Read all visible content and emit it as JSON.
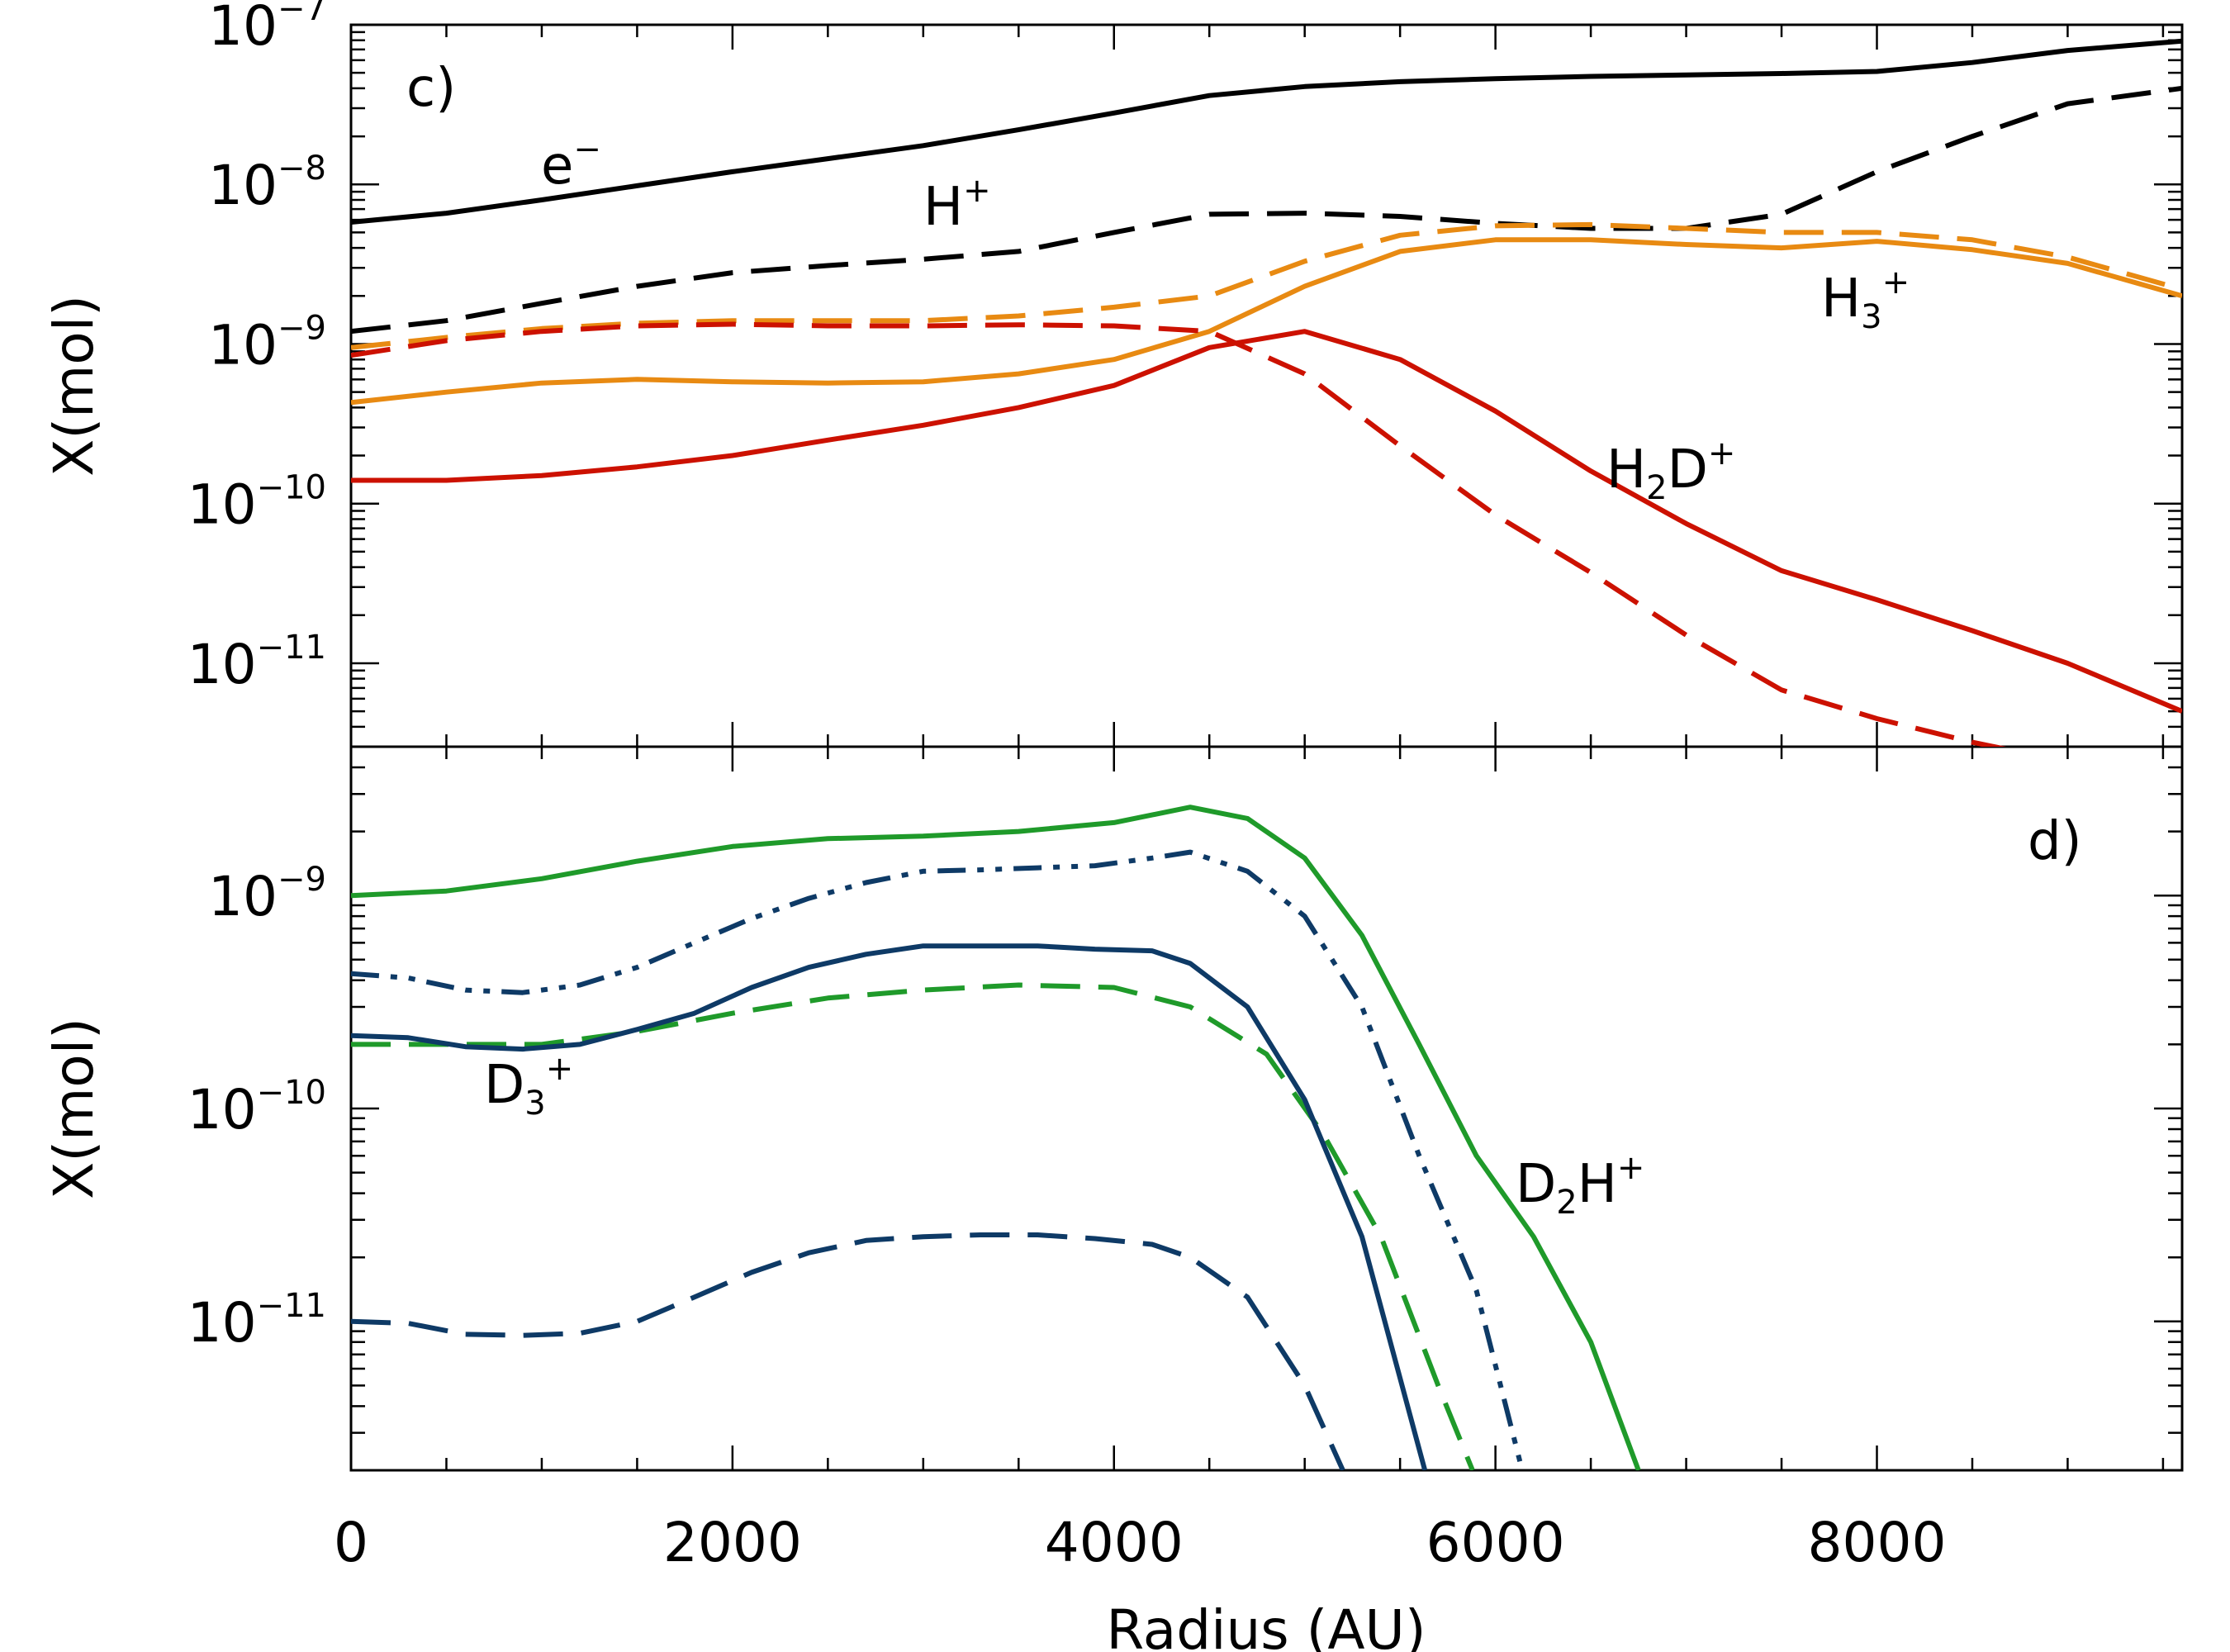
{
  "chart_data": [
    {
      "panel": "c)",
      "type": "line",
      "xlabel": "Radius (AU)",
      "ylabel": "X(mol)",
      "yscale": "log",
      "xlim": [
        0,
        9600
      ],
      "ylim": [
        3e-12,
        1e-07
      ],
      "x_ticks": [
        0,
        2000,
        4000,
        6000,
        8000
      ],
      "y_ticks": [
        1e-11,
        1e-10,
        1e-09,
        1e-08,
        1e-07
      ],
      "y_tick_labels": [
        {
          "base": "10",
          "exp": "−11"
        },
        {
          "base": "10",
          "exp": "−10"
        },
        {
          "base": "10",
          "exp": "−9"
        },
        {
          "base": "10",
          "exp": "−8"
        },
        {
          "base": "10",
          "exp": "−7"
        }
      ],
      "series": [
        {
          "name": "e⁻",
          "color": "#000000",
          "style": "solid",
          "x": [
            0,
            500,
            1000,
            1500,
            2000,
            2500,
            3000,
            3500,
            4000,
            4500,
            5000,
            5500,
            6000,
            6500,
            7000,
            7500,
            8000,
            8500,
            9000,
            9600
          ],
          "y": [
            5.8e-09,
            6.6e-09,
            8e-09,
            9.8e-09,
            1.2e-08,
            1.45e-08,
            1.75e-08,
            2.2e-08,
            2.8e-08,
            3.6e-08,
            4.1e-08,
            4.4e-08,
            4.6e-08,
            4.75e-08,
            4.85e-08,
            4.95e-08,
            5.1e-08,
            5.8e-08,
            6.9e-08,
            7.9e-08
          ]
        },
        {
          "name": "H⁺",
          "color": "#000000",
          "style": "dashed",
          "x": [
            0,
            500,
            1000,
            1500,
            2000,
            2500,
            3000,
            3500,
            4000,
            4500,
            5000,
            5500,
            6000,
            6500,
            7000,
            7500,
            8000,
            8500,
            9000,
            9600
          ],
          "y": [
            1.2e-09,
            1.4e-09,
            1.8e-09,
            2.3e-09,
            2.8e-09,
            3.1e-09,
            3.4e-09,
            3.8e-09,
            5e-09,
            6.5e-09,
            6.6e-09,
            6.3e-09,
            5.7e-09,
            5.3e-09,
            5.3e-09,
            6.5e-09,
            1.2e-08,
            2e-08,
            3.2e-08,
            4e-08
          ]
        },
        {
          "name": "H₃⁺",
          "color": "#e88a12",
          "style": "solid",
          "x": [
            0,
            500,
            1000,
            1500,
            2000,
            2500,
            3000,
            3500,
            4000,
            4500,
            5000,
            5500,
            6000,
            6500,
            7000,
            7500,
            8000,
            8500,
            9000,
            9600
          ],
          "y": [
            4.3e-10,
            5e-10,
            5.7e-10,
            6e-10,
            5.8e-10,
            5.7e-10,
            5.8e-10,
            6.5e-10,
            8e-10,
            1.2e-09,
            2.3e-09,
            3.8e-09,
            4.5e-09,
            4.5e-09,
            4.2e-09,
            4e-09,
            4.4e-09,
            3.9e-09,
            3.2e-09,
            2e-09
          ]
        },
        {
          "name": "H₃⁺ (dashed)",
          "color": "#e88a12",
          "style": "dashed",
          "x": [
            0,
            500,
            1000,
            1500,
            2000,
            2500,
            3000,
            3500,
            4000,
            4500,
            5000,
            5500,
            6000,
            6500,
            7000,
            7500,
            8000,
            8500,
            9000,
            9600
          ],
          "y": [
            9.5e-10,
            1.1e-09,
            1.25e-09,
            1.35e-09,
            1.4e-09,
            1.4e-09,
            1.4e-09,
            1.5e-09,
            1.7e-09,
            2e-09,
            3.3e-09,
            4.8e-09,
            5.5e-09,
            5.6e-09,
            5.3e-09,
            5e-09,
            5e-09,
            4.5e-09,
            3.5e-09,
            2.2e-09
          ]
        },
        {
          "name": "H₂D⁺",
          "color": "#cc1100",
          "style": "solid",
          "x": [
            0,
            500,
            1000,
            1500,
            2000,
            2500,
            3000,
            3500,
            4000,
            4500,
            5000,
            5500,
            6000,
            6500,
            7000,
            7500,
            8000,
            8500,
            9000,
            9600
          ],
          "y": [
            1.4e-10,
            1.4e-10,
            1.5e-10,
            1.7e-10,
            2e-10,
            2.5e-10,
            3.1e-10,
            4e-10,
            5.5e-10,
            9.5e-10,
            1.2e-09,
            8e-10,
            3.8e-10,
            1.6e-10,
            7.5e-11,
            3.8e-11,
            2.5e-11,
            1.6e-11,
            1e-11,
            5e-12
          ]
        },
        {
          "name": "H₂D⁺ (dashed)",
          "color": "#cc1100",
          "style": "dashed",
          "x": [
            0,
            500,
            1000,
            1500,
            2000,
            2500,
            3000,
            3500,
            4000,
            4500,
            5000,
            5500,
            6000,
            6500,
            7000,
            7500,
            8000,
            8500,
            8800
          ],
          "y": [
            8.5e-10,
            1.05e-09,
            1.2e-09,
            1.3e-09,
            1.33e-09,
            1.3e-09,
            1.3e-09,
            1.32e-09,
            1.3e-09,
            1.2e-09,
            6.5e-10,
            2.3e-10,
            8.5e-11,
            3.7e-11,
            1.5e-11,
            6.8e-12,
            4.5e-12,
            3.2e-12,
            2.7e-12
          ]
        }
      ],
      "annotations": [
        {
          "text": "c)"
        },
        {
          "base": "e",
          "sub": "",
          "sup": "−"
        },
        {
          "base": "H",
          "sub": "",
          "sup": "+"
        },
        {
          "base": "H",
          "sub": "3",
          "sup": "+"
        },
        {
          "base": "H",
          "sub": "2",
          "mid": "D",
          "sup": "+"
        }
      ]
    },
    {
      "panel": "d)",
      "type": "line",
      "xlabel": "Radius (AU)",
      "ylabel": "X(mol)",
      "yscale": "log",
      "xlim": [
        0,
        9600
      ],
      "ylim": [
        2e-12,
        5e-09
      ],
      "x_ticks": [
        0,
        2000,
        4000,
        6000,
        8000
      ],
      "x_tick_labels": [
        "0",
        "2000",
        "4000",
        "6000",
        "8000"
      ],
      "y_ticks": [
        1e-11,
        1e-10,
        1e-09
      ],
      "y_tick_labels": [
        {
          "base": "10",
          "exp": "−11"
        },
        {
          "base": "10",
          "exp": "−10"
        },
        {
          "base": "10",
          "exp": "−9"
        }
      ],
      "series": [
        {
          "name": "D₂H⁺",
          "color": "#1f9a2a",
          "style": "solid",
          "x": [
            0,
            500,
            1000,
            1500,
            2000,
            2500,
            3000,
            3500,
            4000,
            4400,
            4700,
            5000,
            5300,
            5600,
            5900,
            6200,
            6500,
            6750
          ],
          "y": [
            1e-09,
            1.05e-09,
            1.2e-09,
            1.45e-09,
            1.7e-09,
            1.85e-09,
            1.9e-09,
            2e-09,
            2.2e-09,
            2.6e-09,
            2.3e-09,
            1.5e-09,
            6.5e-10,
            2e-10,
            6e-11,
            2.5e-11,
            8e-12,
            2e-12
          ]
        },
        {
          "name": "D₂H⁺ (dashed)",
          "color": "#1f9a2a",
          "style": "dashed",
          "x": [
            0,
            500,
            1000,
            1500,
            2000,
            2500,
            3000,
            3500,
            4000,
            4400,
            4800,
            5100,
            5400,
            5700,
            5880
          ],
          "y": [
            2e-10,
            2e-10,
            2e-10,
            2.3e-10,
            2.8e-10,
            3.3e-10,
            3.6e-10,
            3.8e-10,
            3.7e-10,
            3e-10,
            1.8e-10,
            7.5e-11,
            2.5e-11,
            5e-12,
            2e-12
          ]
        },
        {
          "name": "D₃⁺",
          "color": "#0e3a66",
          "style": "solid",
          "x": [
            0,
            300,
            600,
            900,
            1200,
            1500,
            1800,
            2100,
            2400,
            2700,
            3000,
            3300,
            3600,
            3900,
            4200,
            4400,
            4700,
            5000,
            5300,
            5630
          ],
          "y": [
            2.2e-10,
            2.15e-10,
            1.95e-10,
            1.9e-10,
            2e-10,
            2.35e-10,
            2.8e-10,
            3.7e-10,
            4.6e-10,
            5.3e-10,
            5.8e-10,
            5.8e-10,
            5.8e-10,
            5.6e-10,
            5.5e-10,
            4.8e-10,
            3e-10,
            1.1e-10,
            2.5e-11,
            2e-12
          ]
        },
        {
          "name": "D₃⁺ (dashed)",
          "color": "#0e3a66",
          "style": "dashed",
          "x": [
            0,
            300,
            600,
            900,
            1200,
            1500,
            1800,
            2100,
            2400,
            2700,
            3000,
            3300,
            3600,
            3900,
            4200,
            4400,
            4700,
            5000,
            5200
          ],
          "y": [
            1e-11,
            9.8e-12,
            8.7e-12,
            8.6e-12,
            8.8e-12,
            1e-11,
            1.3e-11,
            1.7e-11,
            2.1e-11,
            2.4e-11,
            2.5e-11,
            2.55e-11,
            2.55e-11,
            2.45e-11,
            2.3e-11,
            2e-11,
            1.3e-11,
            5e-12,
            2e-12
          ]
        },
        {
          "name": "D₃⁺ (dash-dot-dot)",
          "color": "#0e3a66",
          "style": "dashdotdot",
          "x": [
            0,
            300,
            600,
            900,
            1200,
            1500,
            1800,
            2100,
            2400,
            2700,
            3000,
            3300,
            3600,
            3900,
            4200,
            4400,
            4700,
            5000,
            5300,
            5600,
            5900,
            6140
          ],
          "y": [
            4.3e-10,
            4.1e-10,
            3.6e-10,
            3.5e-10,
            3.8e-10,
            4.6e-10,
            6e-10,
            7.8e-10,
            9.7e-10,
            1.15e-09,
            1.3e-09,
            1.32e-09,
            1.35e-09,
            1.38e-09,
            1.5e-09,
            1.6e-09,
            1.3e-09,
            8e-10,
            3e-10,
            6e-11,
            1.4e-11,
            2e-12
          ]
        }
      ],
      "annotations": [
        {
          "text": "d)"
        },
        {
          "base": "D",
          "sub": "3",
          "sup": "+"
        },
        {
          "base": "D",
          "sub": "2",
          "mid": "H",
          "sup": "+"
        }
      ]
    }
  ]
}
